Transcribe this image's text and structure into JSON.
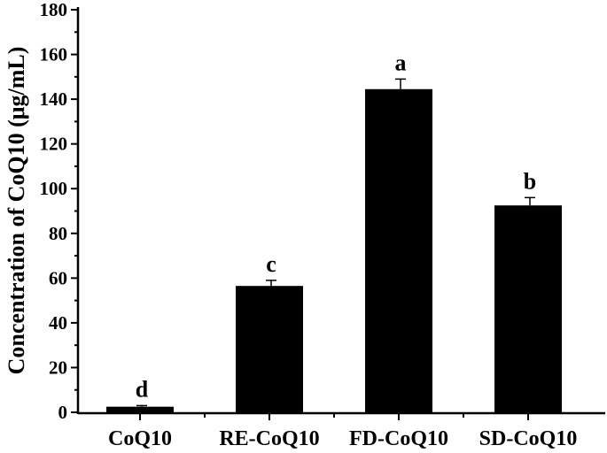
{
  "chart_data": {
    "type": "bar",
    "title": "",
    "xlabel": "",
    "ylabel": "Concentration of CoQ10 (μg/mL)",
    "ylim": [
      0,
      180
    ],
    "yticks": [
      "0",
      "20",
      "40",
      "60",
      "80",
      "100",
      "120",
      "140",
      "160",
      "180"
    ],
    "categories": [
      "CoQ10",
      "RE-CoQ10",
      "FD-CoQ10",
      "SD-CoQ10"
    ],
    "values": [
      2.5,
      56.5,
      144.5,
      92.5
    ],
    "errors": [
      0.5,
      2.5,
      4.5,
      3.5
    ],
    "significance_labels": [
      "d",
      "c",
      "a",
      "b"
    ],
    "bar_color": "#000000",
    "grid": false,
    "legend": "none"
  }
}
